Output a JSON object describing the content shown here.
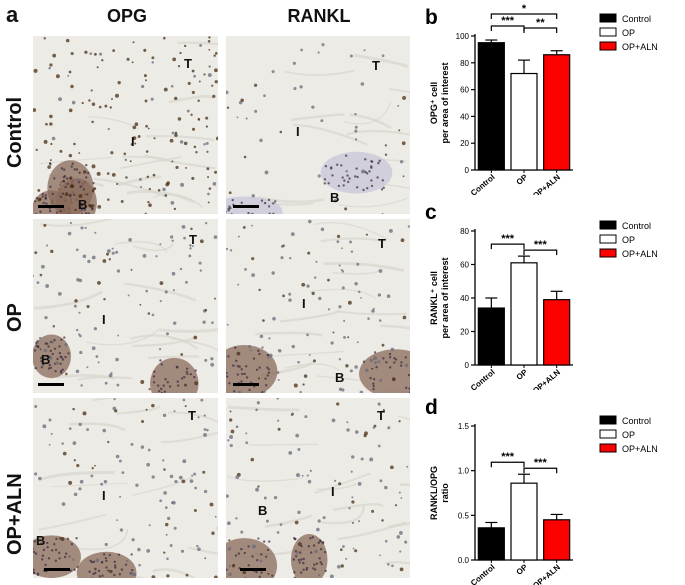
{
  "figure": {
    "panel_a_letter": "a",
    "columns": [
      "OPG",
      "RANKL"
    ],
    "rows": [
      "Control",
      "OP",
      "OP+ALN"
    ],
    "micro_labels": {
      "trabecular": "T",
      "interface": "I",
      "bone": "B"
    }
  },
  "colors": {
    "control": "#000000",
    "op": "#ffffff",
    "op_aln": "#ff0000"
  },
  "chart_data": [
    {
      "panel": "b",
      "type": "bar",
      "categories": [
        "Control",
        "OP",
        "OP+ALN"
      ],
      "values": [
        95,
        72,
        86
      ],
      "errors": [
        2,
        10,
        3
      ],
      "ylabel_line1": "OPG⁺ cell",
      "ylabel_line2": "per area of interest",
      "ylim": [
        0,
        100
      ],
      "yticks": [
        "0",
        "20",
        "40",
        "60",
        "80",
        "100"
      ],
      "legend": [
        "Control",
        "OP",
        "OP+ALN"
      ],
      "significance": [
        {
          "from": 0,
          "to": 2,
          "label": "*"
        },
        {
          "from": 1,
          "to": 2,
          "label": "**"
        },
        {
          "from": 0,
          "to": 1,
          "label": "***"
        }
      ]
    },
    {
      "panel": "c",
      "type": "bar",
      "categories": [
        "Control",
        "OP",
        "OP+ALN"
      ],
      "values": [
        34,
        61,
        39
      ],
      "errors": [
        6,
        4,
        5
      ],
      "ylabel_line1": "RANKL⁺ cell",
      "ylabel_line2": "per area of interest",
      "ylim": [
        0,
        80
      ],
      "yticks": [
        "0",
        "20",
        "40",
        "60",
        "80"
      ],
      "legend": [
        "Control",
        "OP",
        "OP+ALN"
      ],
      "significance": [
        {
          "from": 0,
          "to": 1,
          "label": "***"
        },
        {
          "from": 1,
          "to": 2,
          "label": "***"
        }
      ]
    },
    {
      "panel": "d",
      "type": "bar",
      "categories": [
        "Control",
        "OP",
        "OP+ALN"
      ],
      "values": [
        0.36,
        0.86,
        0.45
      ],
      "errors": [
        0.06,
        0.1,
        0.06
      ],
      "ylabel_line1": "RANKL/OPG",
      "ylabel_line2": "ratio",
      "ylim": [
        0,
        1.5
      ],
      "yticks": [
        "0.0",
        "0.5",
        "1.0",
        "1.5"
      ],
      "legend": [
        "Control",
        "OP",
        "OP+ALN"
      ],
      "significance": [
        {
          "from": 0,
          "to": 1,
          "label": "***"
        },
        {
          "from": 1,
          "to": 2,
          "label": "***"
        }
      ]
    }
  ]
}
